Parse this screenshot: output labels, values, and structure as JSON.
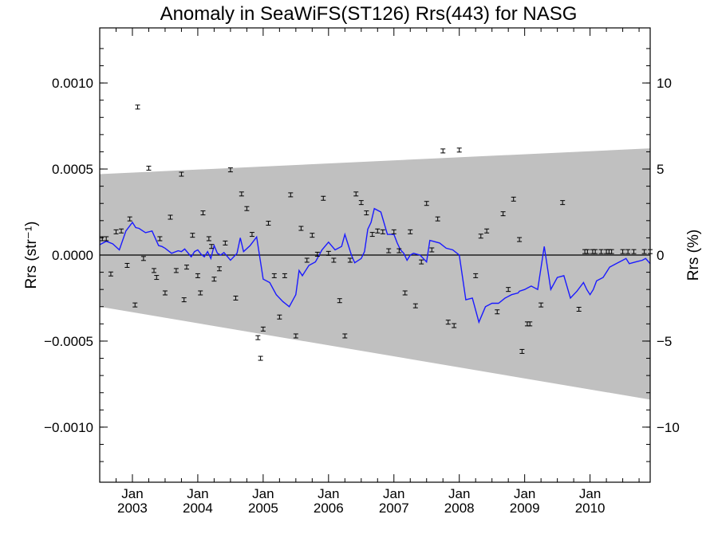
{
  "chart_data": {
    "type": "scatter",
    "title": "Anomaly in SeaWiFS(ST126) Rrs(443) for NASG",
    "ylabel_left": "Rrs (str⁻¹)",
    "ylabel_right": "Rrs (%)",
    "xlabel": "",
    "x_tick_labels": [
      {
        "month": "Jan",
        "year": "2003",
        "t": 2003.0
      },
      {
        "month": "Jan",
        "year": "2004",
        "t": 2004.0
      },
      {
        "month": "Jan",
        "year": "2005",
        "t": 2005.0
      },
      {
        "month": "Jan",
        "year": "2006",
        "t": 2006.0
      },
      {
        "month": "Jan",
        "year": "2007",
        "t": 2007.0
      },
      {
        "month": "Jan",
        "year": "2008",
        "t": 2008.0
      },
      {
        "month": "Jan",
        "year": "2009",
        "t": 2009.0
      },
      {
        "month": "Jan",
        "year": "2010",
        "t": 2010.0
      }
    ],
    "xlim": [
      2002.5,
      2010.92
    ],
    "ylim_left": [
      -0.00132,
      0.00132
    ],
    "ylim_right": [
      -13.2,
      13.2
    ],
    "y_ticks_left": [
      {
        "value": 0.001,
        "label": "0.0010"
      },
      {
        "value": 0.0005,
        "label": "0.0005"
      },
      {
        "value": 0.0,
        "label": "0.0000"
      },
      {
        "value": -0.0005,
        "label": "−0.0005"
      },
      {
        "value": -0.001,
        "label": "−0.0010"
      }
    ],
    "y_ticks_right": [
      {
        "value": 10,
        "label": "10"
      },
      {
        "value": 5,
        "label": "5"
      },
      {
        "value": 0,
        "label": "0"
      },
      {
        "value": -5,
        "label": "−5"
      },
      {
        "value": -10,
        "label": "−10"
      }
    ],
    "shaded_band": {
      "upper": [
        [
          2002.5,
          0.00047
        ],
        [
          2010.92,
          0.00062
        ]
      ],
      "lower": [
        [
          2002.5,
          -0.0003
        ],
        [
          2010.92,
          -0.00084
        ]
      ],
      "color": "#c0c0c0"
    },
    "zero_line": 0.0,
    "series_points": {
      "color": "#000000",
      "marker": "errorbar",
      "x": [
        2002.54,
        2002.6,
        2002.67,
        2002.75,
        2002.83,
        2002.92,
        2002.96,
        2003.04,
        2003.08,
        2003.17,
        2003.25,
        2003.33,
        2003.37,
        2003.42,
        2003.5,
        2003.58,
        2003.67,
        2003.75,
        2003.79,
        2003.83,
        2003.92,
        2004.0,
        2004.04,
        2004.08,
        2004.17,
        2004.21,
        2004.25,
        2004.33,
        2004.42,
        2004.5,
        2004.58,
        2004.67,
        2004.75,
        2004.83,
        2004.92,
        2004.96,
        2005.0,
        2005.08,
        2005.17,
        2005.25,
        2005.33,
        2005.42,
        2005.5,
        2005.58,
        2005.67,
        2005.75,
        2005.83,
        2005.92,
        2006.0,
        2006.08,
        2006.17,
        2006.25,
        2006.33,
        2006.42,
        2006.5,
        2006.58,
        2006.67,
        2006.75,
        2006.83,
        2006.92,
        2007.0,
        2007.08,
        2007.17,
        2007.25,
        2007.33,
        2007.42,
        2007.5,
        2007.58,
        2007.67,
        2007.75,
        2007.83,
        2007.92,
        2008.0,
        2008.25,
        2008.33,
        2008.42,
        2008.58,
        2008.67,
        2008.75,
        2008.83,
        2008.92,
        2008.96,
        2009.04,
        2009.08,
        2009.25,
        2009.58,
        2009.83,
        2009.92,
        2009.96,
        2010.04,
        2010.08,
        2010.17,
        2010.25,
        2010.29,
        2010.33,
        2010.5,
        2010.58,
        2010.67,
        2010.83,
        2010.92
      ],
      "y": [
        9.5e-05,
        9.5e-05,
        -0.00011,
        0.000135,
        0.00014,
        -6e-05,
        0.00021,
        -0.00029,
        0.00086,
        -2e-05,
        0.000505,
        -9e-05,
        -0.00013,
        9.5e-05,
        -0.00022,
        0.00022,
        -9e-05,
        0.00047,
        -0.00026,
        -7e-05,
        0.000115,
        -0.00012,
        -0.00022,
        0.000245,
        9.5e-05,
        5e-05,
        -0.00014,
        -8e-05,
        7e-05,
        0.000495,
        -0.00025,
        0.000355,
        0.00027,
        0.00012,
        -0.00048,
        -0.0006,
        -0.00043,
        0.000185,
        -0.00012,
        -0.00036,
        -0.00012,
        0.00035,
        -0.00047,
        0.000155,
        -3e-05,
        0.000115,
        5e-06,
        0.00033,
        1e-05,
        -3e-05,
        -0.000265,
        -0.00047,
        -3e-05,
        0.000355,
        0.000305,
        0.000245,
        0.00012,
        0.00014,
        0.000135,
        2.5e-05,
        0.000135,
        2.5e-05,
        -0.00022,
        0.000135,
        -0.000295,
        -4e-05,
        0.0003,
        3e-05,
        0.00021,
        0.000605,
        -0.00039,
        -0.00041,
        0.00061,
        -0.00012,
        0.00011,
        0.00014,
        -0.00033,
        0.00024,
        -0.0002,
        0.000325,
        9e-05,
        -0.00056,
        -0.0004,
        -0.0004,
        -0.00029,
        0.000305,
        -0.000315,
        2e-05,
        2e-05,
        2e-05,
        2e-05,
        2e-05,
        2e-05,
        2e-05,
        2e-05,
        2e-05,
        2e-05,
        2e-05,
        2e-05,
        2e-05
      ]
    },
    "series_line": {
      "color": "#1a1aff",
      "x": [
        2002.5,
        2002.6,
        2002.7,
        2002.8,
        2002.9,
        2003.0,
        2003.05,
        2003.1,
        2003.2,
        2003.3,
        2003.4,
        2003.45,
        2003.5,
        2003.6,
        2003.7,
        2003.75,
        2003.8,
        2003.9,
        2003.95,
        2004.0,
        2004.05,
        2004.1,
        2004.15,
        2004.2,
        2004.25,
        2004.3,
        2004.35,
        2004.4,
        2004.5,
        2004.55,
        2004.6,
        2004.65,
        2004.7,
        2004.8,
        2004.85,
        2004.9,
        2005.0,
        2005.1,
        2005.2,
        2005.3,
        2005.4,
        2005.5,
        2005.55,
        2005.6,
        2005.7,
        2005.8,
        2005.9,
        2006.0,
        2006.1,
        2006.2,
        2006.25,
        2006.3,
        2006.35,
        2006.4,
        2006.5,
        2006.55,
        2006.6,
        2006.65,
        2006.7,
        2006.8,
        2006.9,
        2007.0,
        2007.05,
        2007.1,
        2007.15,
        2007.2,
        2007.25,
        2007.3,
        2007.35,
        2007.4,
        2007.5,
        2007.55,
        2007.6,
        2007.7,
        2007.8,
        2007.9,
        2008.0,
        2008.1,
        2008.2,
        2008.3,
        2008.4,
        2008.5,
        2008.6,
        2008.7,
        2008.8,
        2008.9,
        2008.92,
        2009.0,
        2009.05,
        2009.1,
        2009.2,
        2009.3,
        2009.4,
        2009.5,
        2009.6,
        2009.7,
        2009.8,
        2009.9,
        2009.95,
        2010.0,
        2010.05,
        2010.1,
        2010.2,
        2010.25,
        2010.3,
        2010.4,
        2010.5,
        2010.55,
        2010.6,
        2010.7,
        2010.8,
        2010.85,
        2010.92
      ],
      "y": [
        6e-05,
        8e-05,
        6.5e-05,
        3e-05,
        0.00014,
        0.00019,
        0.00016,
        0.000155,
        0.00013,
        0.00014,
        5.5e-05,
        5e-05,
        4e-05,
        1e-05,
        2.5e-05,
        2e-05,
        3.5e-05,
        -1e-05,
        2e-05,
        3e-05,
        5e-06,
        -1e-05,
        2e-05,
        -2e-05,
        5.5e-05,
        1e-05,
        0.0,
        1.5e-05,
        -3e-05,
        -1e-05,
        1e-05,
        0.0001,
        2e-05,
        5.5e-05,
        8e-05,
        0.000105,
        -0.00014,
        -0.00016,
        -0.00023,
        -0.00027,
        -0.0003,
        -0.00023,
        -9e-05,
        -0.00012,
        -6e-05,
        -4e-05,
        3e-05,
        7.5e-05,
        3e-05,
        5e-05,
        0.00012,
        6e-05,
        0.0,
        -4.5e-05,
        -2e-05,
        2e-05,
        0.00015,
        0.00019,
        0.00027,
        0.00025,
        0.00012,
        0.00012,
        7e-05,
        3e-05,
        1e-05,
        -3e-05,
        0.0,
        1e-05,
        5e-06,
        0.0,
        -4e-05,
        8.5e-05,
        8e-05,
        7e-05,
        4e-05,
        3e-05,
        0.0,
        -0.00026,
        -0.00025,
        -0.00039,
        -0.0003,
        -0.00028,
        -0.00028,
        -0.00025,
        -0.00023,
        -0.00022,
        -0.00021,
        -0.0002,
        -0.00019,
        -0.00018,
        -0.0002,
        5e-05,
        -0.0002,
        -0.00013,
        -0.00012,
        -0.00025,
        -0.00021,
        -0.00016,
        -0.0002,
        -0.00023,
        -0.0002,
        -0.00015,
        -0.00013,
        -0.0001,
        -7e-05,
        -5e-05,
        -3e-05,
        -2e-05,
        -5e-05,
        -4e-05,
        -3e-05,
        -2e-05,
        -5e-05
      ]
    },
    "grid": false,
    "legend": "none"
  }
}
